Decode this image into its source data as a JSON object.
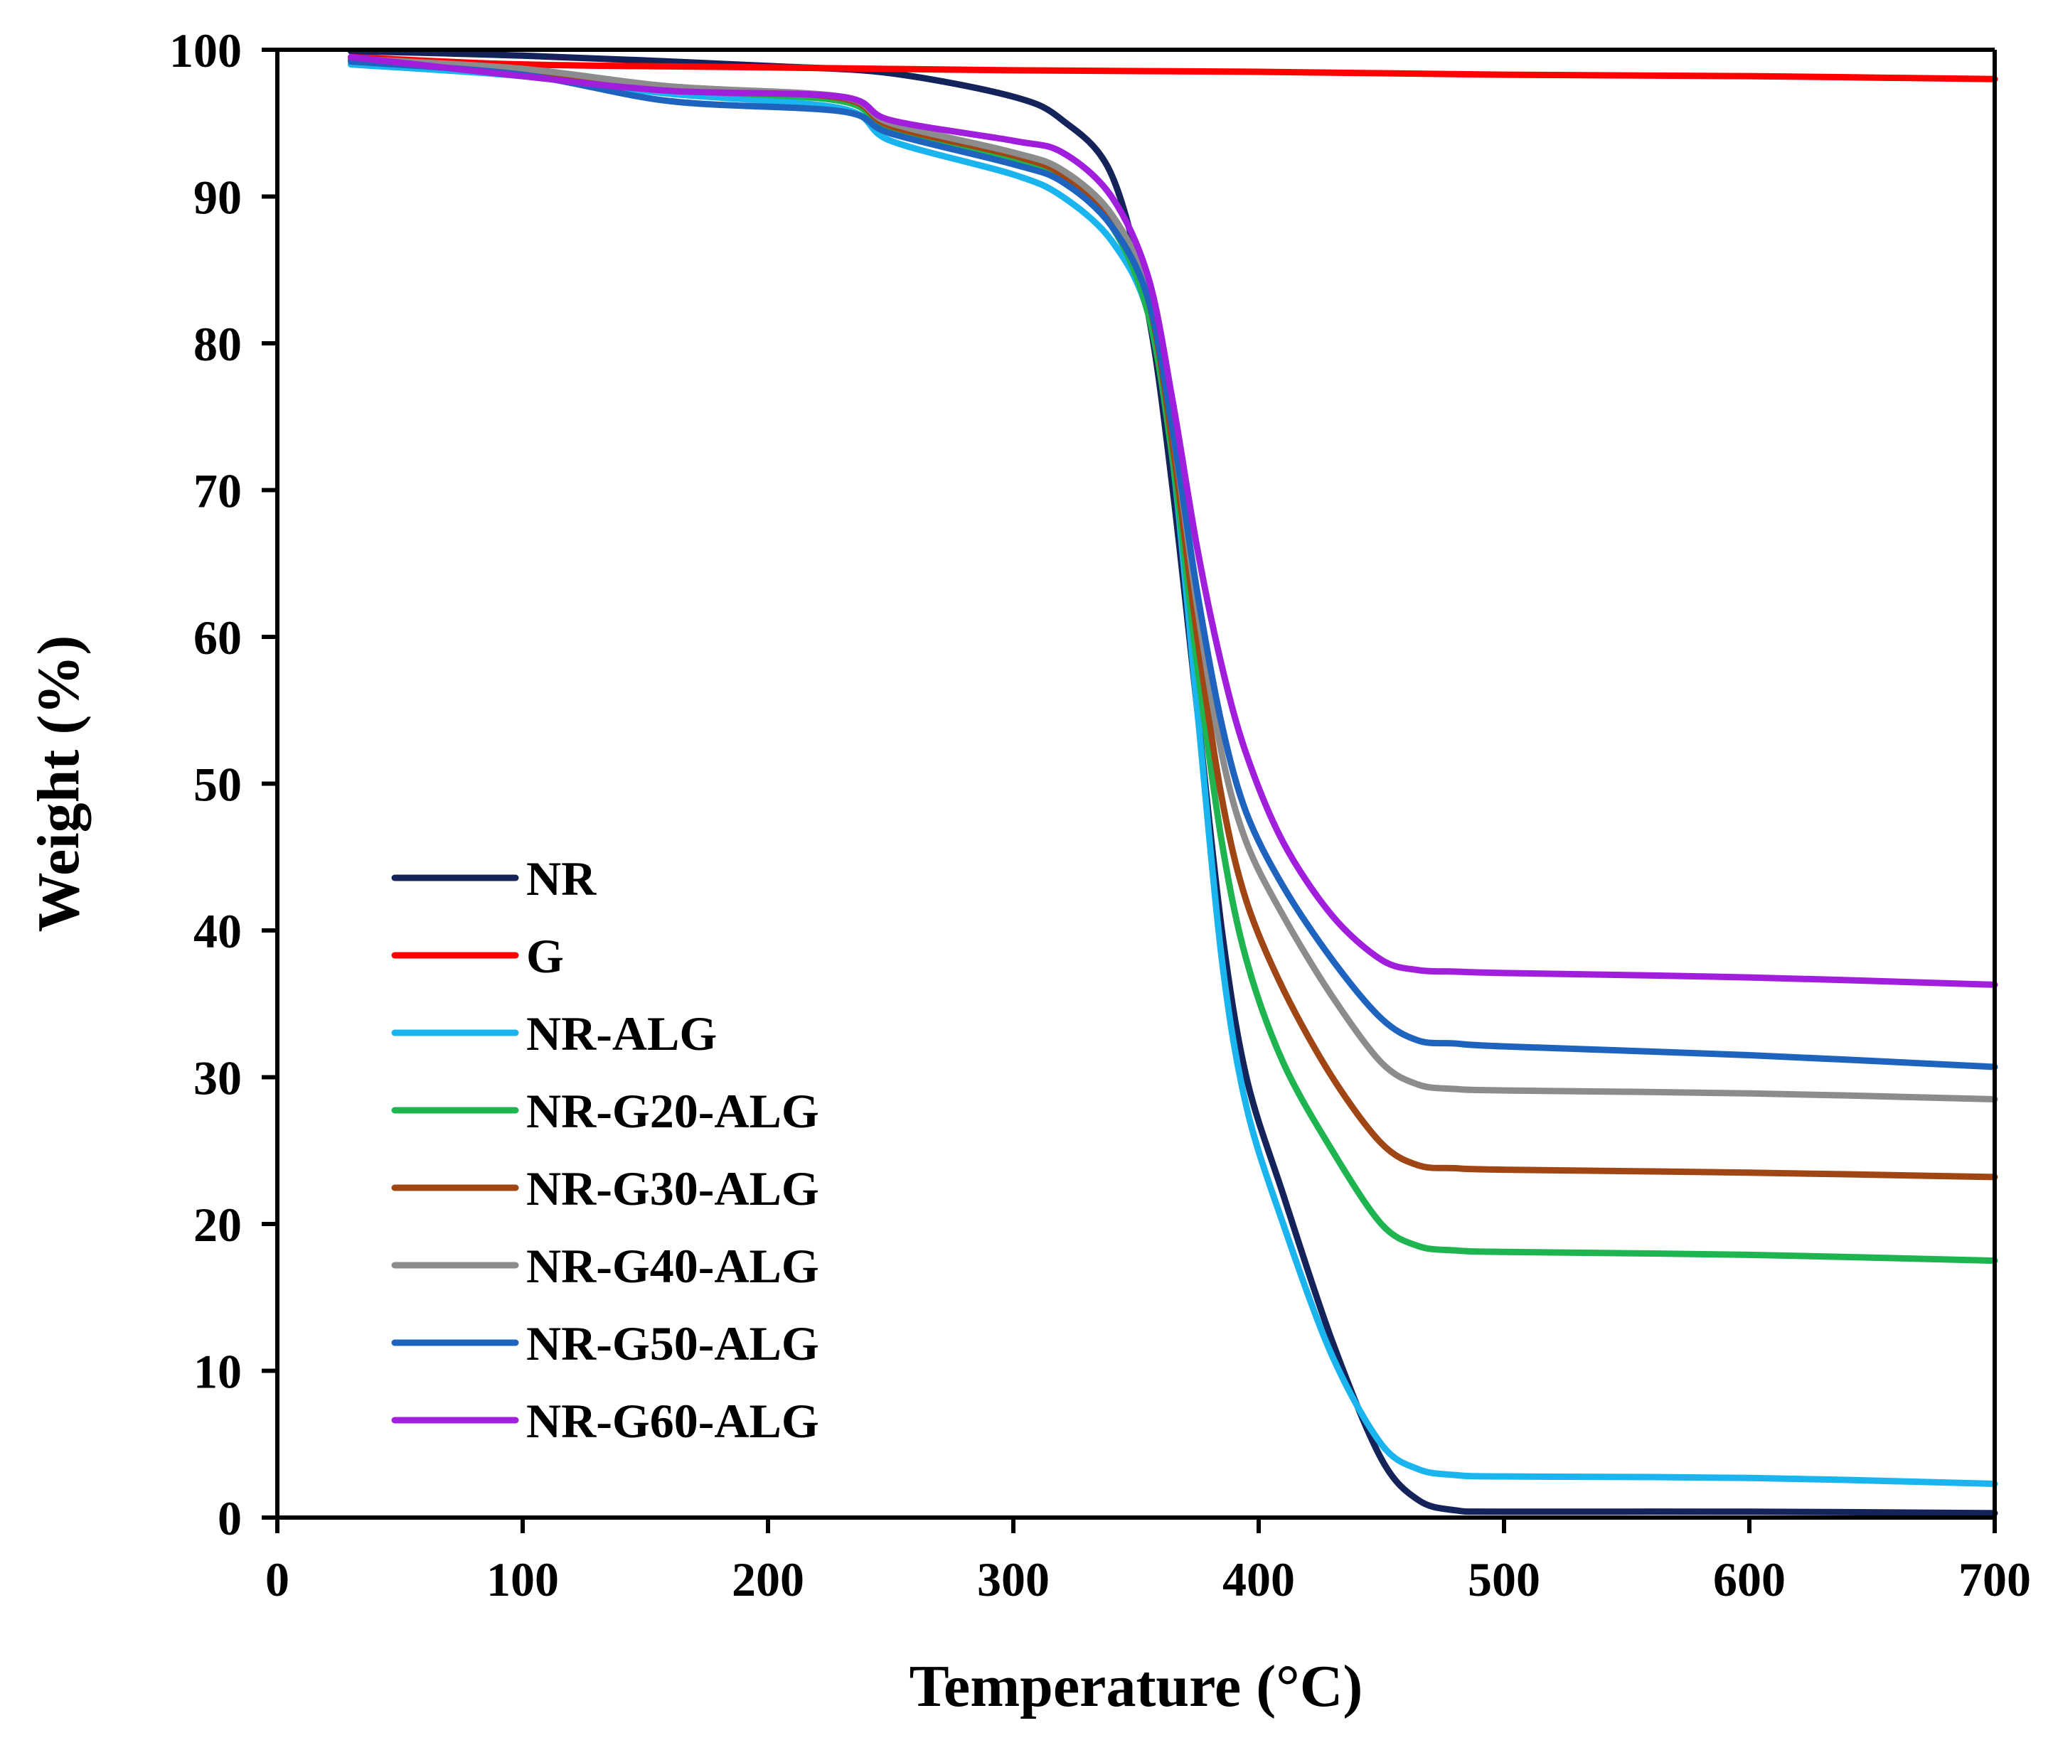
{
  "chart_data": {
    "type": "line",
    "title": "",
    "xlabel": "Temperature (°C)",
    "ylabel": "Weight (%)",
    "xlim": [
      0,
      700
    ],
    "ylim": [
      0,
      100
    ],
    "xticks": [
      0,
      100,
      200,
      300,
      400,
      500,
      600,
      700
    ],
    "yticks": [
      0,
      10,
      20,
      30,
      40,
      50,
      60,
      70,
      80,
      90,
      100
    ],
    "xtick_labels": [
      "0",
      "100",
      "200",
      "300",
      "400",
      "500",
      "600",
      "700"
    ],
    "ytick_labels": [
      "0",
      "10",
      "20",
      "30",
      "40",
      "50",
      "60",
      "70",
      "80",
      "90",
      "100"
    ],
    "grid": false,
    "legend_position": "lower-left",
    "series": [
      {
        "name": "NR",
        "color": "#14235a",
        "x": [
          30,
          100,
          200,
          250,
          300,
          320,
          340,
          355,
          365,
          375,
          385,
          395,
          410,
          430,
          450,
          465,
          480,
          500,
          600,
          700
        ],
        "y": [
          99.9,
          99.6,
          98.9,
          98.4,
          96.8,
          95.2,
          91.5,
          82,
          70,
          55,
          40,
          30,
          22,
          12,
          4,
          1.2,
          0.5,
          0.4,
          0.4,
          0.3
        ]
      },
      {
        "name": "G",
        "color": "#ff0000",
        "x": [
          30,
          100,
          200,
          300,
          400,
          500,
          600,
          700
        ],
        "y": [
          99.5,
          99.0,
          98.8,
          98.6,
          98.5,
          98.3,
          98.2,
          98.0
        ]
      },
      {
        "name": "NR-ALG",
        "color": "#1ab4ee",
        "x": [
          30,
          100,
          160,
          230,
          250,
          300,
          320,
          340,
          355,
          365,
          375,
          385,
          395,
          410,
          430,
          450,
          465,
          480,
          500,
          600,
          700
        ],
        "y": [
          99.0,
          98.2,
          97.0,
          96.0,
          93.8,
          91.5,
          90.0,
          87,
          82,
          72,
          55,
          38,
          28,
          20,
          11,
          5,
          3.3,
          2.9,
          2.8,
          2.7,
          2.3
        ]
      },
      {
        "name": "NR-G20-ALG",
        "color": "#1eb450",
        "x": [
          30,
          100,
          160,
          230,
          250,
          300,
          320,
          340,
          355,
          365,
          375,
          385,
          395,
          410,
          430,
          450,
          465,
          480,
          500,
          600,
          700
        ],
        "y": [
          99.3,
          98.5,
          97.3,
          96.5,
          94.5,
          92.5,
          91.0,
          88,
          82,
          72,
          58,
          46,
          38,
          31,
          25,
          20,
          18.5,
          18.2,
          18.1,
          17.9,
          17.5
        ]
      },
      {
        "name": "NR-G30-ALG",
        "color": "#a04614",
        "x": [
          30,
          100,
          160,
          230,
          250,
          300,
          320,
          340,
          355,
          365,
          375,
          385,
          395,
          410,
          430,
          450,
          465,
          480,
          500,
          600,
          700
        ],
        "y": [
          99.3,
          98.5,
          97.5,
          96.7,
          94.8,
          92.8,
          91.5,
          88.5,
          83,
          73,
          60,
          49,
          42,
          36,
          30,
          25.5,
          24,
          23.8,
          23.7,
          23.5,
          23.2
        ]
      },
      {
        "name": "NR-G40-ALG",
        "color": "#8c8c8c",
        "x": [
          30,
          100,
          160,
          230,
          250,
          300,
          320,
          340,
          355,
          365,
          375,
          385,
          395,
          410,
          430,
          450,
          465,
          480,
          500,
          600,
          700
        ],
        "y": [
          99.4,
          98.7,
          97.5,
          96.8,
          95.0,
          93.0,
          91.8,
          88.8,
          83.5,
          74,
          62,
          52,
          46,
          41,
          35.5,
          31,
          29.5,
          29.2,
          29.1,
          28.9,
          28.5
        ]
      },
      {
        "name": "NR-G50-ALG",
        "color": "#1e64be",
        "x": [
          30,
          100,
          160,
          230,
          250,
          300,
          320,
          340,
          355,
          365,
          375,
          385,
          395,
          410,
          430,
          450,
          465,
          480,
          500,
          600,
          700
        ],
        "y": [
          99.2,
          98.3,
          96.5,
          95.8,
          94.3,
          92.2,
          91.0,
          88,
          83,
          74,
          63,
          54,
          48,
          43,
          38,
          34,
          32.5,
          32.3,
          32.1,
          31.5,
          30.7
        ]
      },
      {
        "name": "NR-G60-ALG",
        "color": "#a01edc",
        "x": [
          30,
          100,
          160,
          230,
          250,
          300,
          320,
          340,
          355,
          365,
          375,
          385,
          395,
          410,
          430,
          450,
          465,
          480,
          500,
          600,
          700
        ],
        "y": [
          99.5,
          98.2,
          97.2,
          96.8,
          95.2,
          93.8,
          93.0,
          90,
          84.5,
          76,
          66,
          58,
          52,
          46,
          41,
          38,
          37.3,
          37.2,
          37.1,
          36.8,
          36.3
        ]
      }
    ]
  }
}
